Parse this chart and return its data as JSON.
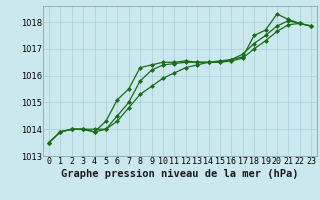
{
  "title": "Graphe pression niveau de la mer (hPa)",
  "xlabel_hours": [
    0,
    1,
    2,
    3,
    4,
    5,
    6,
    7,
    8,
    9,
    10,
    11,
    12,
    13,
    14,
    15,
    16,
    17,
    18,
    19,
    20,
    21,
    22,
    23
  ],
  "line1": [
    1013.5,
    1013.9,
    1014.0,
    1014.0,
    1013.9,
    1014.3,
    1015.1,
    1015.5,
    1016.3,
    1016.4,
    1016.5,
    1016.5,
    1016.55,
    1016.5,
    1016.5,
    1016.5,
    1016.6,
    1016.7,
    1017.5,
    1017.7,
    1018.3,
    1018.1,
    1017.95,
    1017.85
  ],
  "line2": [
    1013.5,
    1013.9,
    1014.0,
    1014.0,
    1014.0,
    1014.0,
    1014.3,
    1014.8,
    1015.3,
    1015.6,
    1015.9,
    1016.1,
    1016.3,
    1016.4,
    1016.5,
    1016.55,
    1016.6,
    1016.8,
    1017.2,
    1017.5,
    1017.85,
    1018.05,
    1017.95,
    1017.85
  ],
  "line3": [
    1013.5,
    1013.9,
    1014.0,
    1014.0,
    1013.9,
    1014.0,
    1014.5,
    1015.0,
    1015.8,
    1016.2,
    1016.4,
    1016.45,
    1016.5,
    1016.5,
    1016.5,
    1016.5,
    1016.55,
    1016.65,
    1017.0,
    1017.3,
    1017.65,
    1017.9,
    1017.95,
    1017.85
  ],
  "line_color": "#1a6b1a",
  "marker": "D",
  "marker_size": 2.0,
  "bg_color": "#cce8ef",
  "grid_color": "#aacdd8",
  "ylim": [
    1013.0,
    1018.6
  ],
  "yticks": [
    1013,
    1014,
    1015,
    1016,
    1017,
    1018
  ],
  "xlim": [
    -0.5,
    23.5
  ],
  "title_fontsize": 7.5,
  "tick_fontsize": 6.0,
  "linewidth": 0.9
}
